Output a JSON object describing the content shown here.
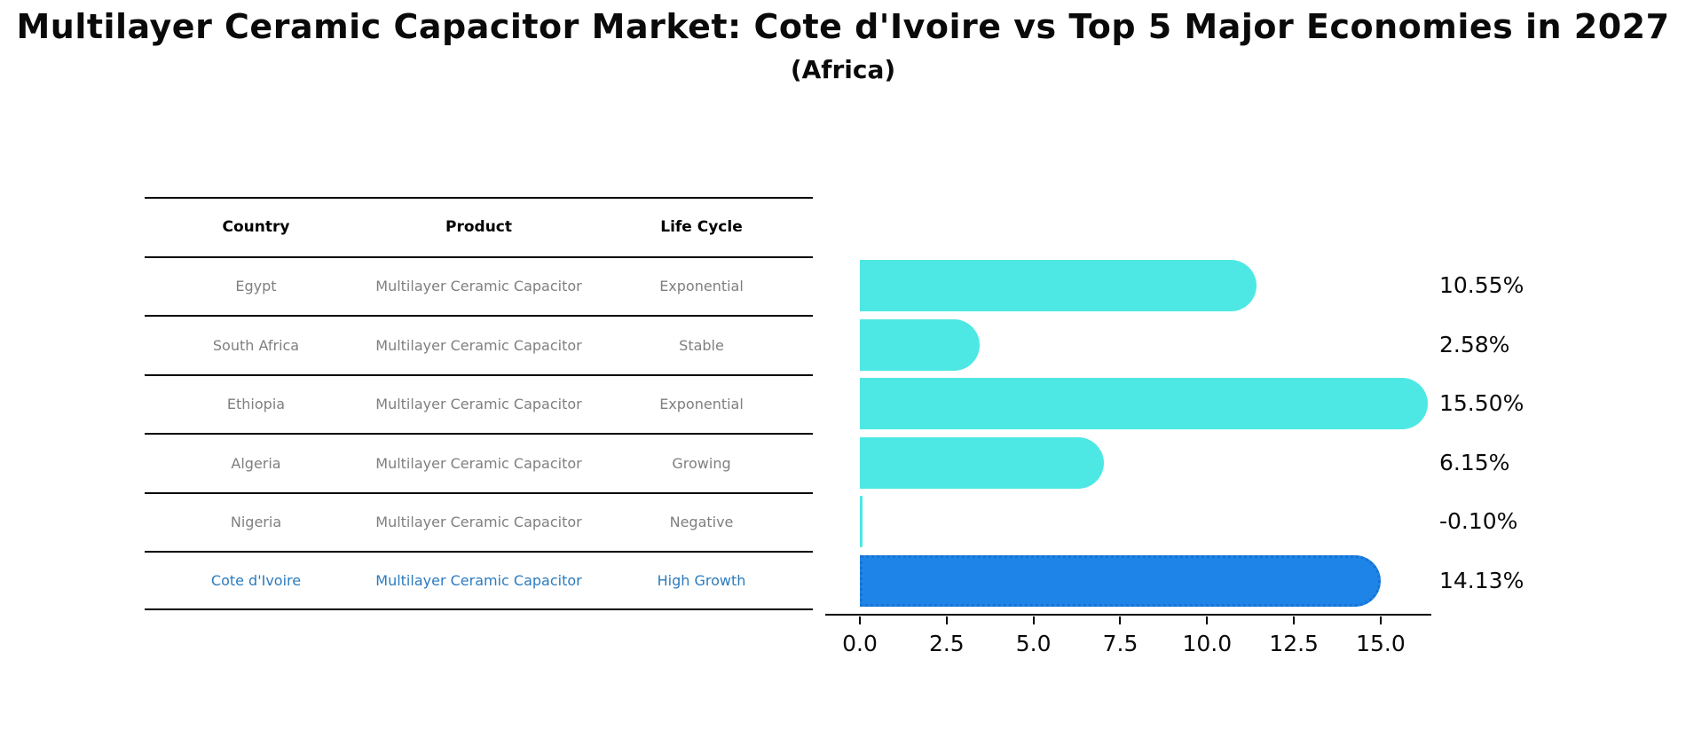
{
  "title": "Multilayer Ceramic Capacitor Market: Cote d'Ivoire vs Top 5 Major Economies in 2027",
  "subtitle": "(Africa)",
  "table": {
    "columns": [
      "Country",
      "Product",
      "Life Cycle"
    ],
    "rows": [
      {
        "country": "Egypt",
        "product": "Multilayer Ceramic Capacitor",
        "life_cycle": "Exponential",
        "highlight": false
      },
      {
        "country": "South Africa",
        "product": "Multilayer Ceramic Capacitor",
        "life_cycle": "Stable",
        "highlight": false
      },
      {
        "country": "Ethiopia",
        "product": "Multilayer Ceramic Capacitor",
        "life_cycle": "Exponential",
        "highlight": false
      },
      {
        "country": "Algeria",
        "product": "Multilayer Ceramic Capacitor",
        "life_cycle": "Growing",
        "highlight": false
      },
      {
        "country": "Nigeria",
        "product": "Multilayer Ceramic Capacitor",
        "life_cycle": "Negative",
        "highlight": false
      },
      {
        "country": "Cote d'Ivoire",
        "product": "Multilayer Ceramic Capacitor",
        "life_cycle": "High Growth",
        "highlight": true
      }
    ]
  },
  "chart_data": {
    "type": "bar",
    "orientation": "horizontal",
    "title": "Multilayer Ceramic Capacitor Market: Cote d'Ivoire vs Top 5 Major Economies in 2027 (Africa)",
    "categories": [
      "Egypt",
      "South Africa",
      "Ethiopia",
      "Algeria",
      "Nigeria",
      "Cote d'Ivoire"
    ],
    "values": [
      10.55,
      2.58,
      15.5,
      6.15,
      -0.1,
      14.13
    ],
    "value_labels": [
      "10.55%",
      "2.58%",
      "15.50%",
      "6.15%",
      "-0.10%",
      "14.13%"
    ],
    "xlabel": "",
    "ylabel": "",
    "xtick_labels": [
      "0.0",
      "2.5",
      "5.0",
      "7.5",
      "10.0",
      "12.5",
      "15.0"
    ],
    "xtick_values": [
      0.0,
      2.5,
      5.0,
      7.5,
      10.0,
      12.5,
      15.0
    ],
    "xlim": [
      -1.0,
      16.45
    ],
    "grid": false,
    "legend": false,
    "colors": {
      "bar_default": "#4de8e4",
      "bar_highlight": "#1e84e8",
      "bar_highlight_border": "#1873d3",
      "highlight_text": "#2b7bbf",
      "table_text": "#7f7f7f",
      "header_text": "#000000",
      "axis": "#000000"
    }
  }
}
